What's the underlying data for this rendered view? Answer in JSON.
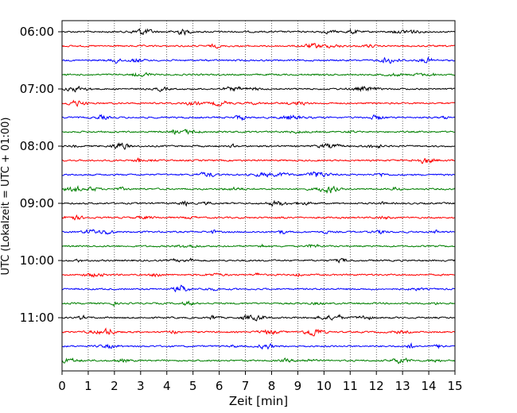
{
  "chart_data": {
    "type": "line",
    "title": "",
    "xlabel": "Zeit  [min]",
    "ylabel": "UTC (Lokalzeit = UTC + 01:00)",
    "xlim": [
      0,
      15
    ],
    "x_ticks": [
      "0",
      "1",
      "2",
      "3",
      "4",
      "5",
      "6",
      "7",
      "8",
      "9",
      "10",
      "11",
      "12",
      "13",
      "14",
      "15"
    ],
    "y_ticks": [
      "06:00",
      "07:00",
      "08:00",
      "09:00",
      "10:00",
      "11:00"
    ],
    "grid": "vertical-dotted",
    "trace_interval_min": 15,
    "trace_start": "06:00",
    "trace_end": "11:45",
    "trace_count": 24,
    "trace_colors": [
      "#000000",
      "#ff0000",
      "#0000ff",
      "#008000"
    ]
  }
}
